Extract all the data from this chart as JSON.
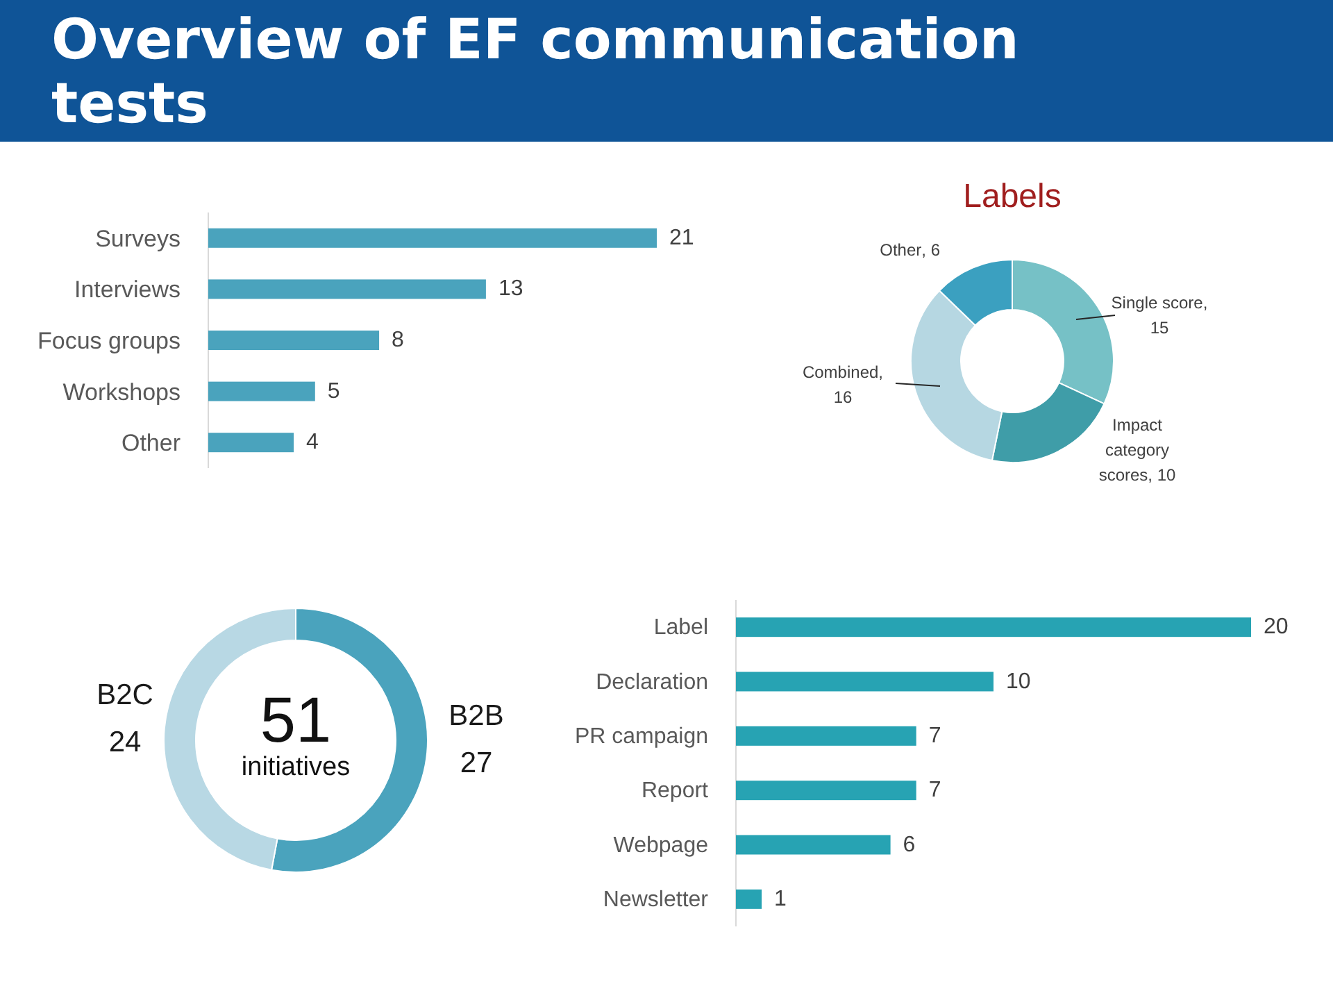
{
  "chart_data": [
    {
      "type": "bar",
      "title": "Overview of EF communication tests",
      "orientation": "horizontal",
      "categories": [
        "Surveys",
        "Interviews",
        "Focus groups",
        "Workshops",
        "Other"
      ],
      "values": [
        21,
        13,
        8,
        5,
        4
      ],
      "color": "#4aa3bd",
      "data_labels": true,
      "tick_labels": "y"
    },
    {
      "type": "donut",
      "title": "Labels",
      "categories": [
        "Single score",
        "Impact category scores",
        "Combined",
        "Other"
      ],
      "values": [
        15,
        10,
        16,
        6
      ],
      "value_labels": [
        ", 15",
        ", 10",
        ", 16",
        ", 6"
      ],
      "colors": [
        "#76c1c6",
        "#3f9da8",
        "#b6d7e2",
        "#3ba0c0"
      ]
    },
    {
      "type": "donut",
      "categories": [
        "B2B",
        "B2C"
      ],
      "values": [
        27,
        24
      ],
      "colors": [
        "#4aa3bd",
        "#b8d8e4"
      ],
      "data_labels": true,
      "annotations": [
        "51",
        "initiatives"
      ]
    },
    {
      "type": "bar",
      "orientation": "horizontal",
      "categories": [
        "Label",
        "Declaration",
        "PR campaign",
        "Report",
        "Webpage",
        "Newsletter"
      ],
      "values": [
        20,
        10,
        7,
        7,
        6,
        1
      ],
      "color": "#27a3b3",
      "data_labels": true,
      "tick_labels": "y"
    }
  ]
}
